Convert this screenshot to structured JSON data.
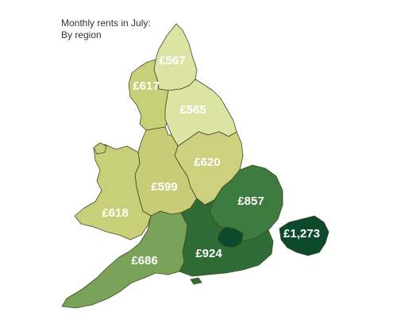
{
  "title": {
    "line1": "Monthly rents in July:",
    "line2": "By region"
  },
  "regions": [
    {
      "id": "north-east",
      "value": "£567",
      "color": "#dce4a4"
    },
    {
      "id": "north-west",
      "value": "£617",
      "color": "#c9cf78"
    },
    {
      "id": "yorkshire",
      "value": "£565",
      "color": "#dce4a4"
    },
    {
      "id": "east-midlands",
      "value": "£620",
      "color": "#cdd17e"
    },
    {
      "id": "west-midlands",
      "value": "£599",
      "color": "#c8cc76"
    },
    {
      "id": "wales",
      "value": "£618",
      "color": "#c9ce78"
    },
    {
      "id": "east",
      "value": "£857",
      "color": "#3e7b3e"
    },
    {
      "id": "south-west",
      "value": "£686",
      "color": "#7aa258"
    },
    {
      "id": "south-east",
      "value": "£924",
      "color": "#2f6b35"
    },
    {
      "id": "london",
      "value": "",
      "color": "#0d4a2d"
    },
    {
      "id": "london-inset",
      "value": "£1,273",
      "color": "#0d4a2d"
    }
  ]
}
